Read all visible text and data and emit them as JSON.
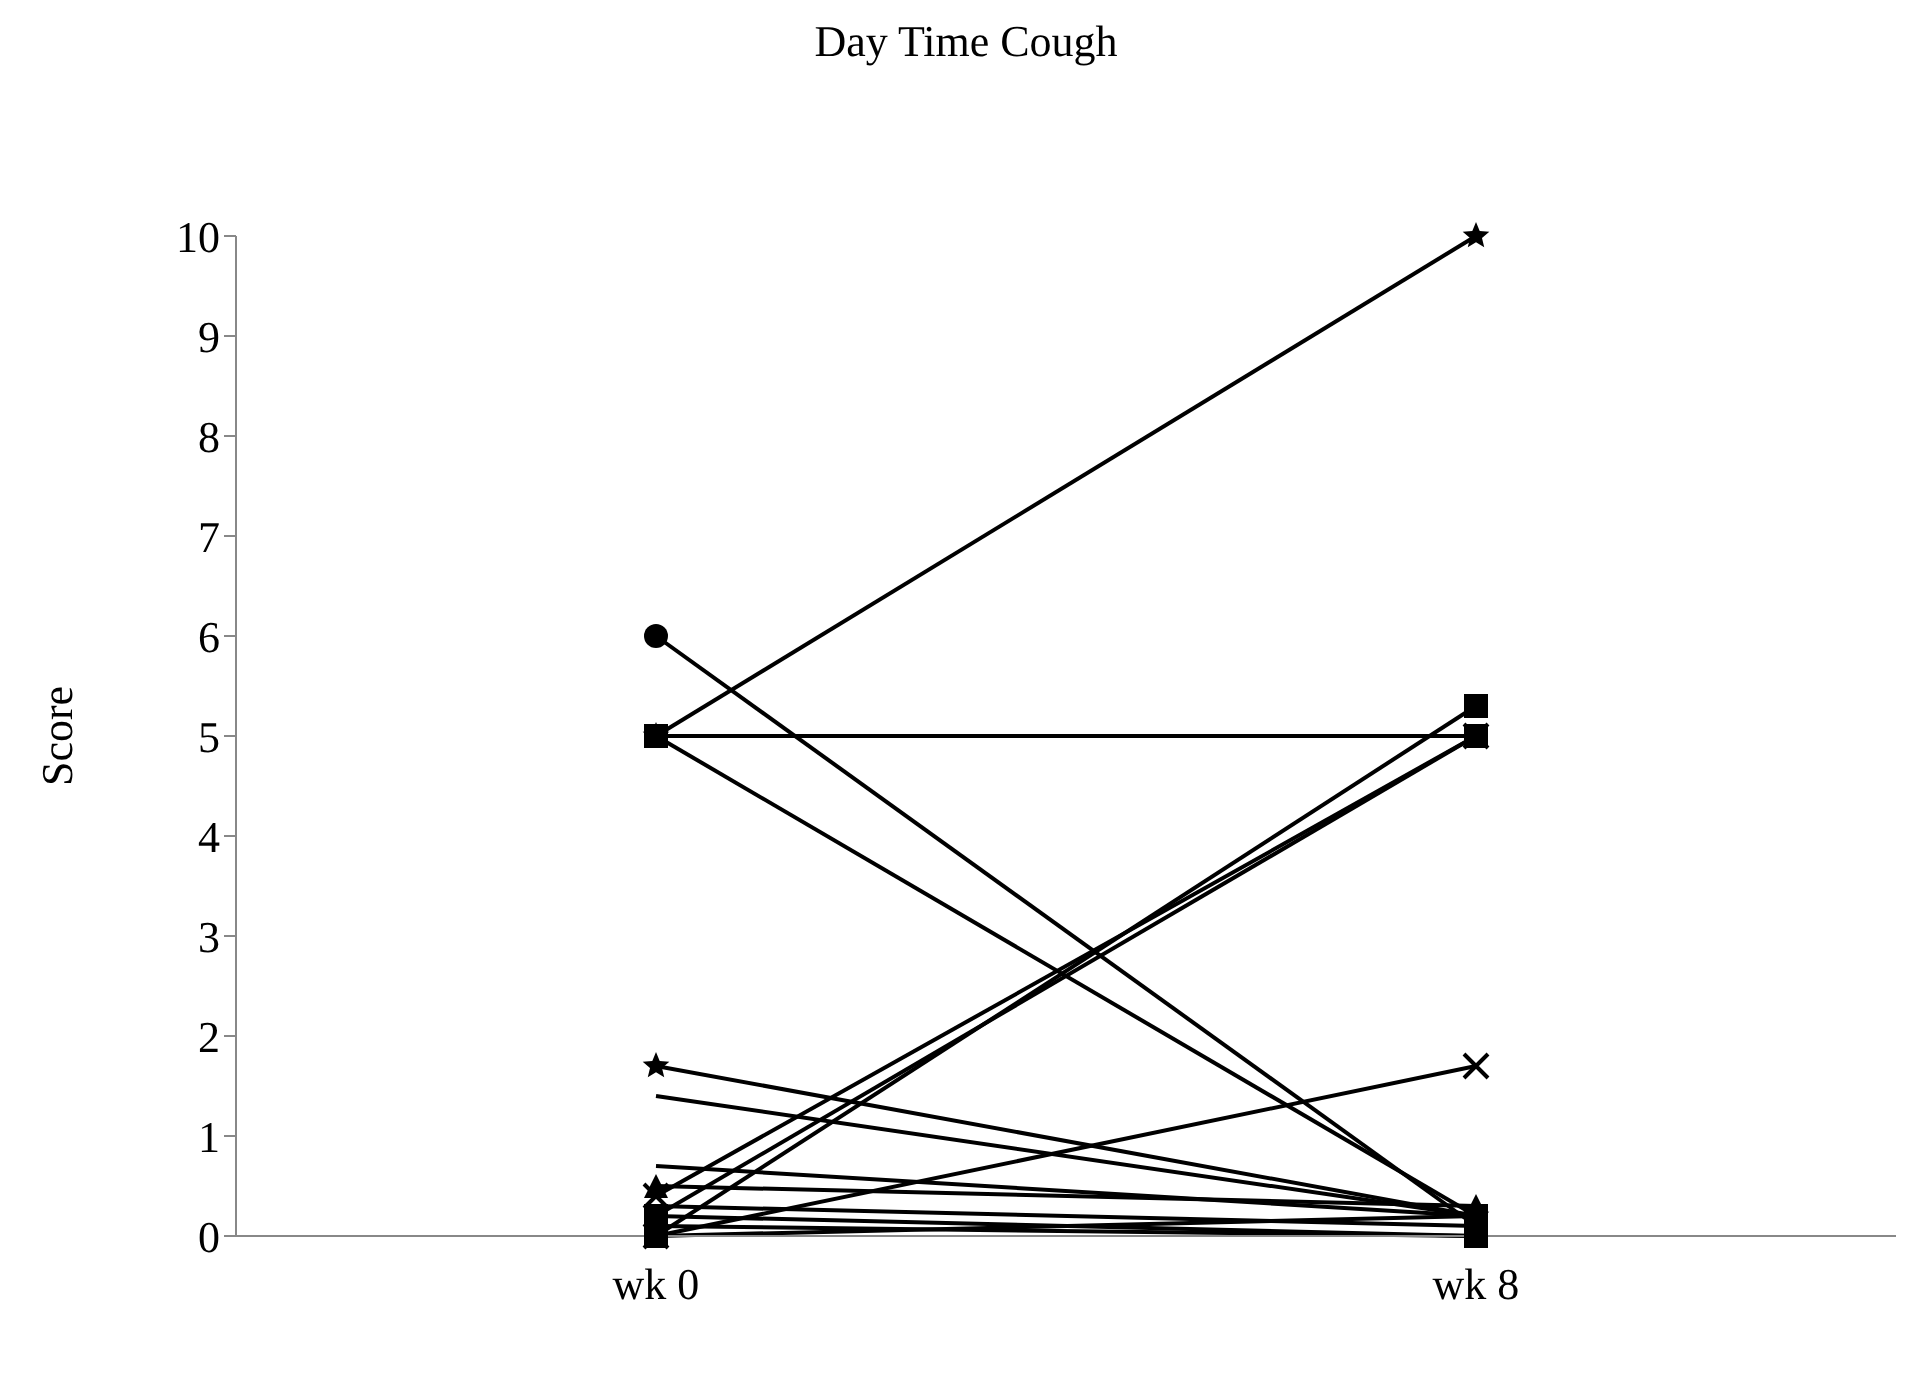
{
  "chart_data": {
    "type": "line",
    "title": "Day Time Cough",
    "ylabel": "Score",
    "categories": [
      "wk 0",
      "wk 8"
    ],
    "ylim": [
      0,
      10
    ],
    "yticks": [
      0,
      1,
      2,
      3,
      4,
      5,
      6,
      7,
      8,
      9,
      10
    ],
    "grid": false,
    "legend": false,
    "series": [
      {
        "color": "#000000",
        "marker": "square",
        "values": [
          5,
          5
        ]
      },
      {
        "color": "#000000",
        "marker": "circle",
        "values": [
          6,
          0.1
        ]
      },
      {
        "color": "#000000",
        "marker": "star",
        "values": [
          5,
          10
        ]
      },
      {
        "color": "#000000",
        "marker": "square",
        "values": [
          5,
          0.2
        ]
      },
      {
        "color": "#000000",
        "marker": "star",
        "values": [
          1.7,
          0.2
        ]
      },
      {
        "color": "#000000",
        "marker": "none",
        "values": [
          1.4,
          0.2
        ]
      },
      {
        "color": "#000000",
        "marker": "square",
        "values": [
          0,
          5.3
        ]
      },
      {
        "color": "#000000",
        "marker": "cross",
        "values": [
          0.4,
          5
        ]
      },
      {
        "color": "#000000",
        "marker": "square",
        "values": [
          0.2,
          5
        ]
      },
      {
        "color": "#000000",
        "marker": "cross",
        "values": [
          0,
          1.7
        ]
      },
      {
        "color": "#000000",
        "marker": "none",
        "values": [
          0.7,
          0.2
        ]
      },
      {
        "color": "#000000",
        "marker": "triangle",
        "values": [
          0.5,
          0.3
        ]
      },
      {
        "color": "#000000",
        "marker": "none",
        "values": [
          0.3,
          0.1
        ]
      },
      {
        "color": "#000000",
        "marker": "square",
        "values": [
          0.1,
          0
        ]
      },
      {
        "color": "#000000",
        "marker": "none",
        "values": [
          0,
          0.2
        ]
      },
      {
        "color": "#000000",
        "marker": "square",
        "values": [
          0.2,
          0
        ]
      }
    ]
  }
}
